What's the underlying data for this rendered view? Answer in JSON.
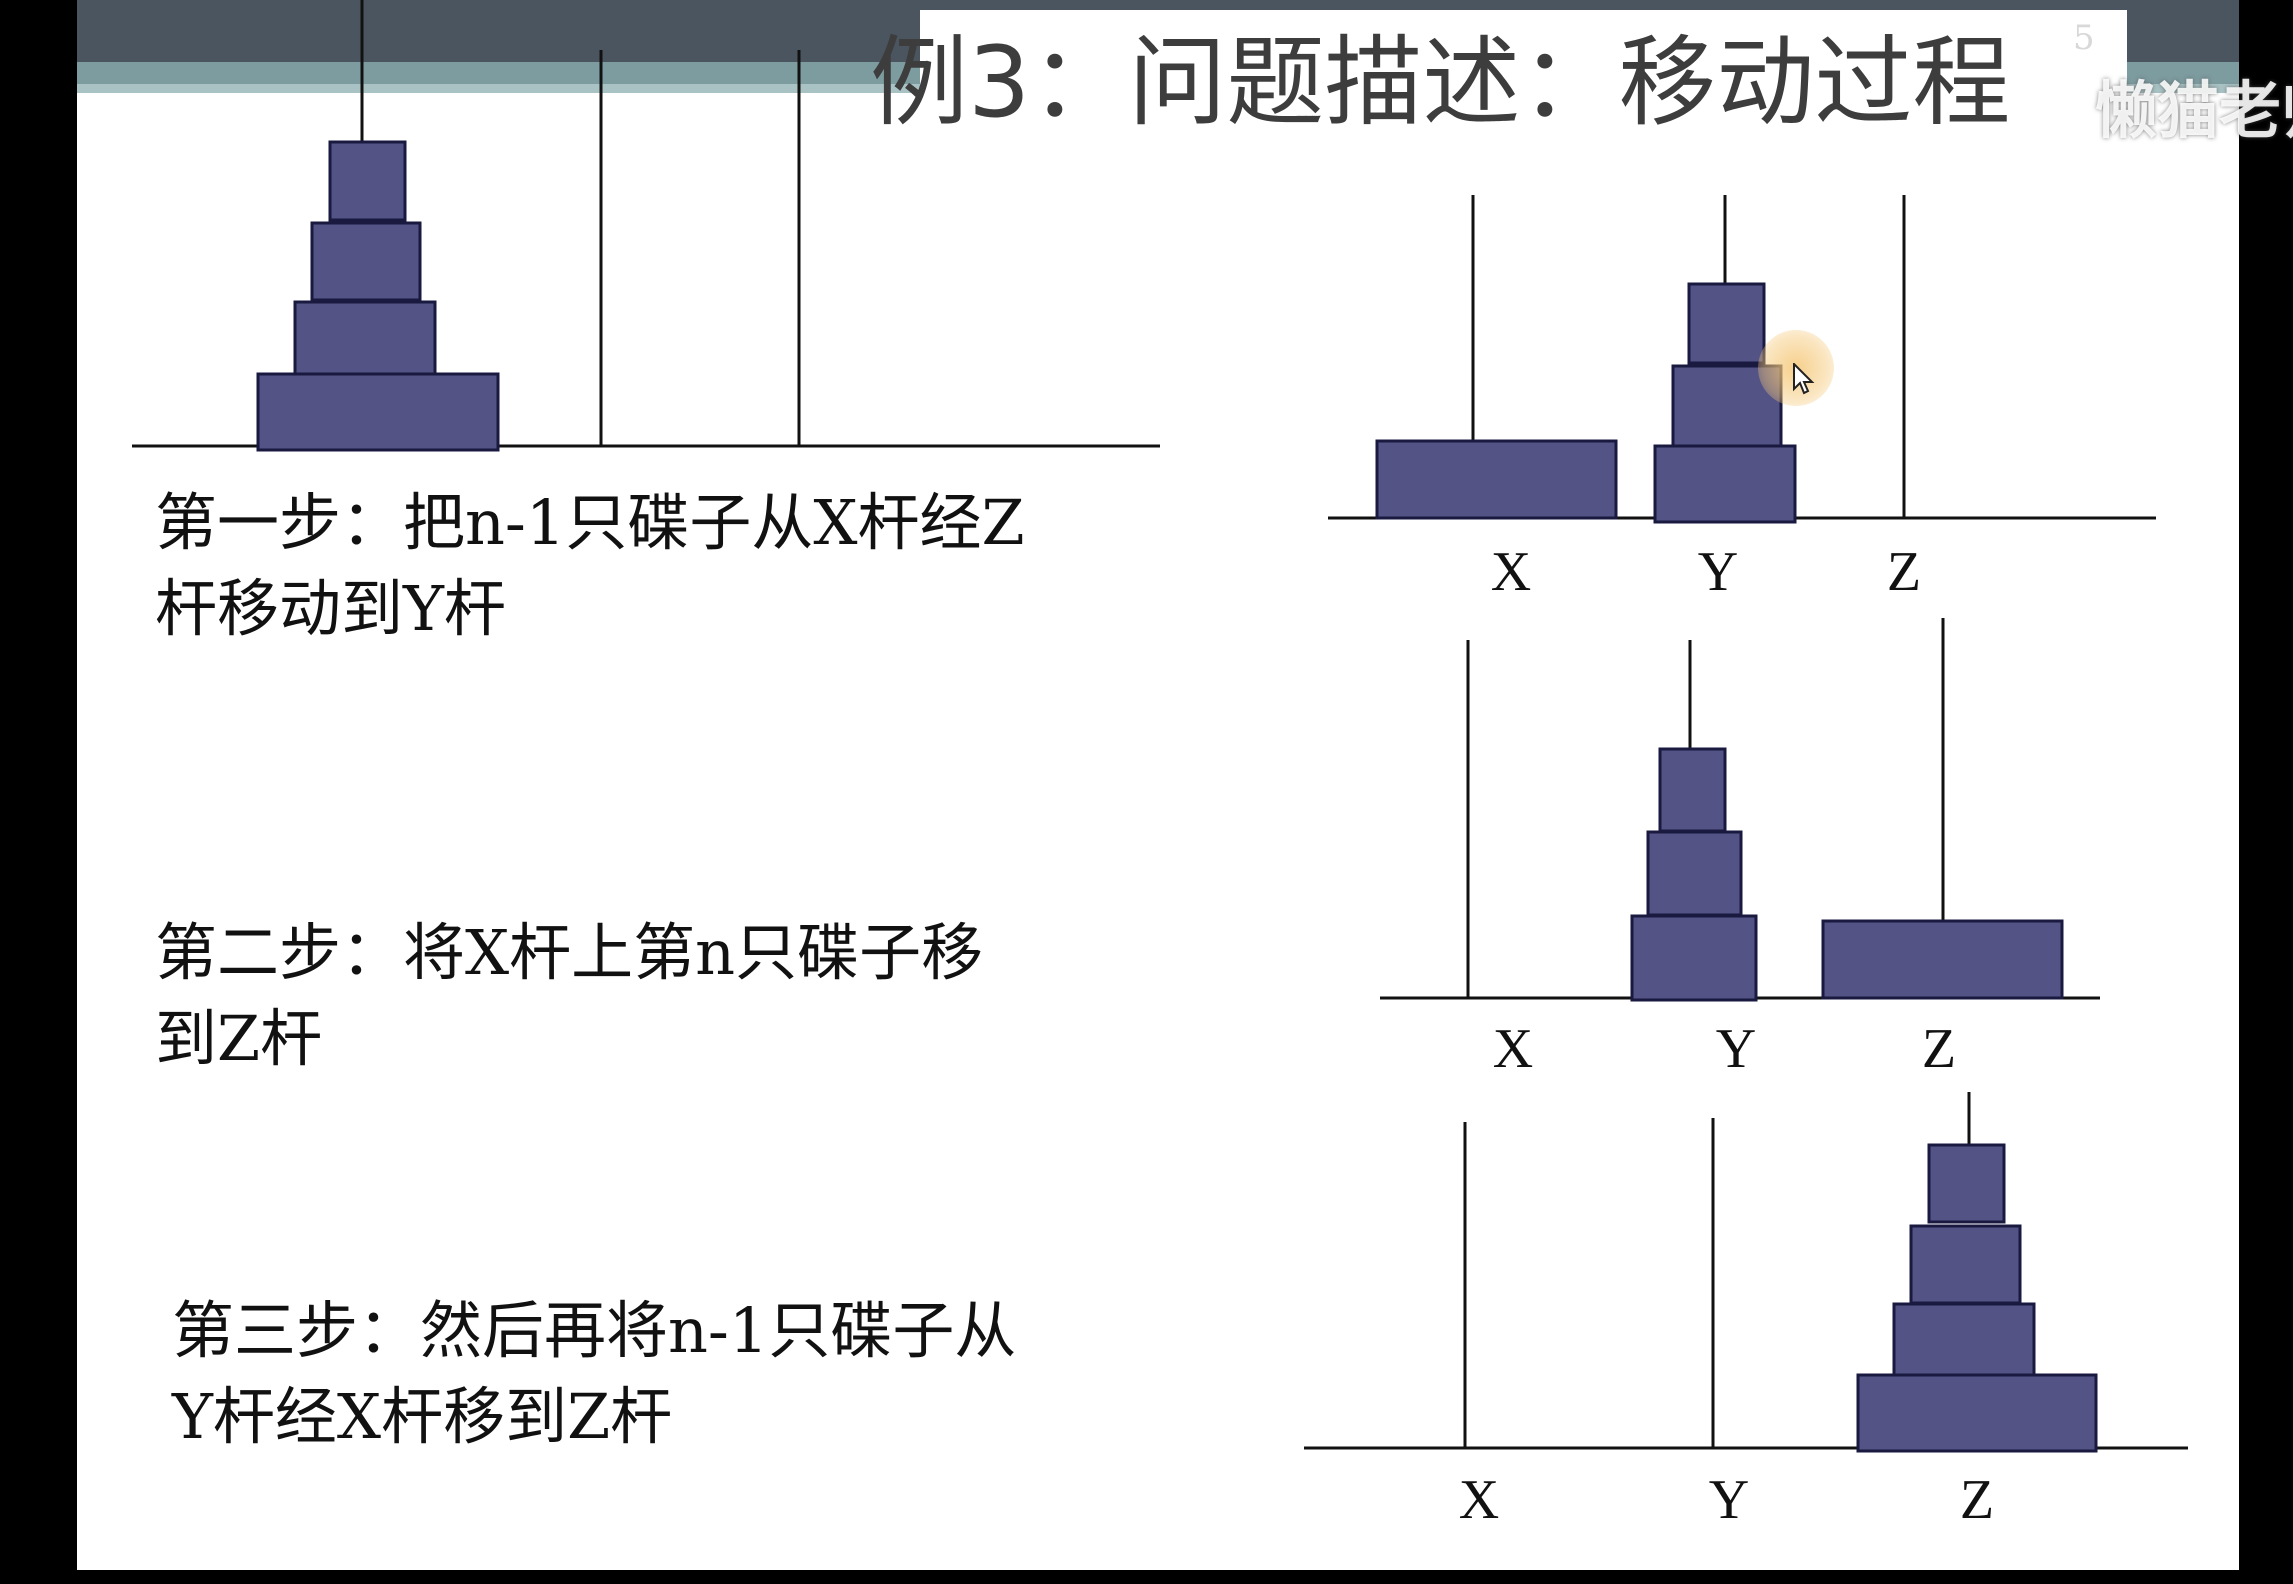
{
  "slide": {
    "title": "例3：问题描述：移动过程",
    "page_number": "5",
    "watermark": "懒猫老师"
  },
  "steps": [
    {
      "line1": "第一步：把n-1只碟子从X杆经Z",
      "line2": "杆移动到Y杆"
    },
    {
      "line1": "第二步：将X杆上第n只碟子移",
      "line2": "到Z杆"
    },
    {
      "line1": "第三步：然后再将n-1只碟子从",
      "line2": "Y杆经X杆移到Z杆"
    }
  ],
  "rod_labels": {
    "step1": [
      "X",
      "Y",
      "Z"
    ],
    "step2": [
      "X",
      "Y",
      "Z"
    ],
    "step3": [
      "X",
      "Y",
      "Z"
    ]
  },
  "colors": {
    "disk_fill": "#535386",
    "disk_stroke": "#1a1a40",
    "line": "#111111"
  }
}
